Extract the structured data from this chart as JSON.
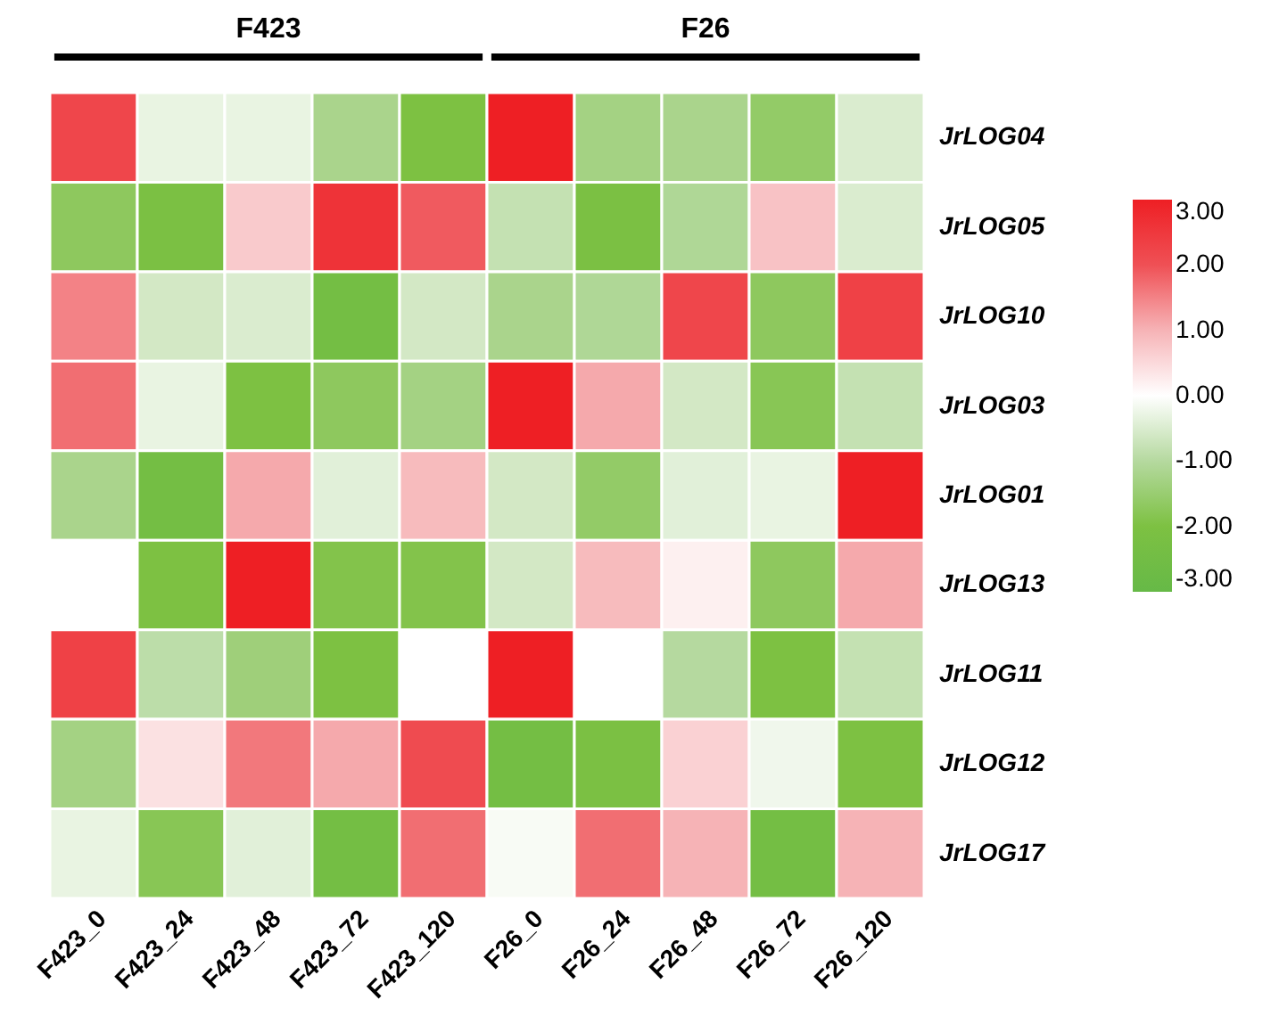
{
  "chart_data": {
    "type": "heatmap",
    "categories": [
      "F423_0",
      "F423_24",
      "F423_48",
      "F423_72",
      "F423_120",
      "F26_0",
      "F26_24",
      "F26_48",
      "F26_72",
      "F26_120"
    ],
    "y_categories": [
      "JrLOG04",
      "JrLOG05",
      "JrLOG10",
      "JrLOG03",
      "JrLOG01",
      "JrLOG13",
      "JrLOG11",
      "JrLOG12",
      "JrLOG17"
    ],
    "cells": [
      [
        2.2,
        -0.3,
        -0.3,
        -1.2,
        -2.0,
        3.0,
        -1.3,
        -1.2,
        -1.6,
        -0.5
      ],
      [
        -1.7,
        -2.1,
        0.7,
        2.6,
        1.9,
        -0.8,
        -2.1,
        -1.1,
        0.8,
        -0.5
      ],
      [
        1.5,
        -0.6,
        -0.5,
        -2.4,
        -0.6,
        -1.2,
        -1.1,
        2.2,
        -1.7,
        2.3
      ],
      [
        1.7,
        -0.3,
        -2.0,
        -1.7,
        -1.3,
        3.0,
        1.1,
        -0.6,
        -1.8,
        -0.8
      ],
      [
        -1.2,
        -2.4,
        1.1,
        -0.4,
        0.9,
        -0.6,
        -1.6,
        -0.4,
        -0.3,
        3.0
      ],
      [
        0.0,
        -2.0,
        3.0,
        -1.9,
        -1.9,
        -0.6,
        0.9,
        0.2,
        -1.7,
        1.1
      ],
      [
        2.3,
        -0.9,
        -1.4,
        -2.0,
        0.0,
        3.0,
        0.0,
        -1.0,
        -2.0,
        -0.8
      ],
      [
        -1.3,
        0.4,
        1.6,
        1.1,
        2.1,
        -2.4,
        -2.1,
        0.6,
        -0.2,
        -2.0
      ],
      [
        -0.3,
        -1.8,
        -0.4,
        -2.4,
        1.7,
        -0.1,
        1.7,
        1.0,
        -2.4,
        1.0
      ]
    ],
    "clim": [
      -3,
      3
    ],
    "cticks": [
      {
        "value": 3,
        "label": "3.00"
      },
      {
        "value": 2,
        "label": "2.00"
      },
      {
        "value": 1,
        "label": "1.00"
      },
      {
        "value": 0,
        "label": "0.00"
      },
      {
        "value": -1,
        "label": "-1.00"
      },
      {
        "value": -2,
        "label": "-2.00"
      },
      {
        "value": -3,
        "label": "-3.00"
      }
    ],
    "annotations": [
      "F423",
      "F26"
    ]
  }
}
